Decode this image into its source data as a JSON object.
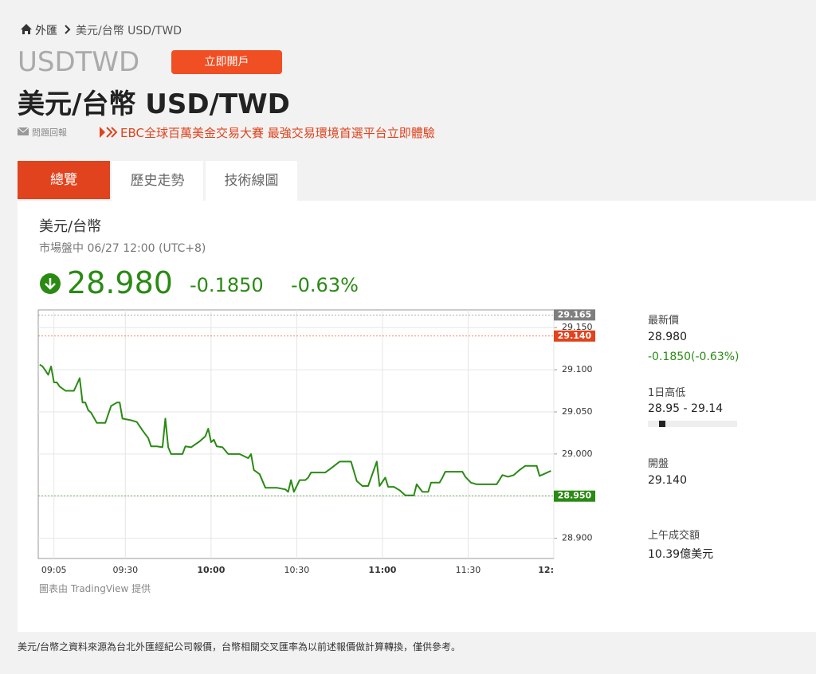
{
  "breadcrumb": {
    "home": "外匯",
    "current": "美元/台幣 USD/TWD"
  },
  "header": {
    "symbol": "USDTWD",
    "button": "立即開戶",
    "title": "美元/台幣 USD/TWD",
    "report": "問題回報",
    "promo": "EBC全球百萬美金交易大賽 最強交易環境首選平台立即體驗"
  },
  "tabs": [
    "總覽",
    "歷史走勢",
    "技術線圖"
  ],
  "quote": {
    "name": "美元/台幣",
    "status": "市場盤中 06/27 12:00 (UTC+8)",
    "price": "28.980",
    "change": "-0.1850",
    "change_pct": "-0.63%"
  },
  "stats": {
    "latest_label": "最新價",
    "latest": "28.980",
    "latest_change": "-0.1850(-0.63%)",
    "range_label": "1日高低",
    "range": "28.95 - 29.14",
    "range_low": 28.95,
    "range_high": 29.14,
    "open_label": "開盤",
    "open": "29.140",
    "turnover_label": "上午成交額",
    "turnover": "10.39億美元"
  },
  "credit": "圖表由 TradingView 提供",
  "footer": "美元/台幣之資料來源為台北外匯經紀公司報價，台幣相關交叉匯率為以前述報價做計算轉換，僅供參考。",
  "chart_data": {
    "type": "line",
    "color": "#2a8a14",
    "grid": true,
    "x": [
      540,
      541,
      542,
      543,
      544,
      545,
      546,
      547,
      549,
      552,
      554,
      555,
      556,
      557,
      558,
      560,
      563,
      565,
      567,
      568,
      569,
      572,
      574,
      576,
      578,
      579,
      581,
      583,
      584,
      585,
      586,
      590,
      591,
      593,
      596,
      598,
      599,
      600,
      601,
      602,
      604,
      606,
      610,
      613,
      614,
      615,
      617,
      619,
      623,
      626,
      627,
      628,
      629,
      631,
      633,
      634,
      635,
      640,
      642,
      645,
      649,
      651,
      653,
      655,
      658,
      659,
      661,
      662,
      664,
      666,
      668,
      671,
      672,
      674,
      676,
      677,
      680,
      681,
      682,
      688,
      689,
      691,
      693,
      700,
      702,
      704,
      706,
      708,
      710,
      714,
      715,
      719
    ],
    "values": [
      29.106,
      29.104,
      29.099,
      29.094,
      29.104,
      29.085,
      29.085,
      29.08,
      29.075,
      29.075,
      29.09,
      29.061,
      29.061,
      29.052,
      29.049,
      29.037,
      29.037,
      29.057,
      29.061,
      29.061,
      29.042,
      29.04,
      29.038,
      29.028,
      29.019,
      29.009,
      29.009,
      29.008,
      29.042,
      29.008,
      29.0,
      29.0,
      29.009,
      29.008,
      29.015,
      29.021,
      29.03,
      29.014,
      29.017,
      29.009,
      29.008,
      29.0,
      29.0,
      28.995,
      29.0,
      28.981,
      28.976,
      28.96,
      28.96,
      28.958,
      28.955,
      28.969,
      28.955,
      28.969,
      28.969,
      28.972,
      28.978,
      28.978,
      28.983,
      28.991,
      28.991,
      28.968,
      28.962,
      28.962,
      28.991,
      28.962,
      28.972,
      28.961,
      28.961,
      28.957,
      28.951,
      28.951,
      28.964,
      28.955,
      28.955,
      28.966,
      28.966,
      28.972,
      28.979,
      28.979,
      28.973,
      28.966,
      28.964,
      28.964,
      28.975,
      28.973,
      28.975,
      28.981,
      28.986,
      28.986,
      28.974,
      28.98
    ],
    "xlim": [
      539.5,
      720
    ],
    "xticks": [
      {
        "value": 545,
        "label": "09:05"
      },
      {
        "value": 570,
        "label": "09:30"
      },
      {
        "value": 600,
        "label": "10:00",
        "bold": true
      },
      {
        "value": 630,
        "label": "10:30"
      },
      {
        "value": 660,
        "label": "11:00",
        "bold": true
      },
      {
        "value": 690,
        "label": "11:30"
      },
      {
        "value": 720,
        "label": "12:",
        "bold": true
      }
    ],
    "ylim": [
      28.876,
      29.171
    ],
    "yticks": [
      {
        "value": 28.9,
        "label": "28.900"
      },
      {
        "value": 28.95,
        "label": "28.950"
      },
      {
        "value": 29.0,
        "label": "29.000"
      },
      {
        "value": 29.05,
        "label": "29.050"
      },
      {
        "value": 29.1,
        "label": "29.100"
      },
      {
        "value": 29.15,
        "label": "29.150"
      }
    ],
    "price_markers": [
      {
        "value": 29.165,
        "label": "29.165",
        "color": "#7f7f7f"
      },
      {
        "value": 29.14,
        "label": "29.140",
        "color": "#e0431d"
      },
      {
        "value": 28.95,
        "label": "28.950",
        "color": "#2a8a14"
      }
    ]
  }
}
